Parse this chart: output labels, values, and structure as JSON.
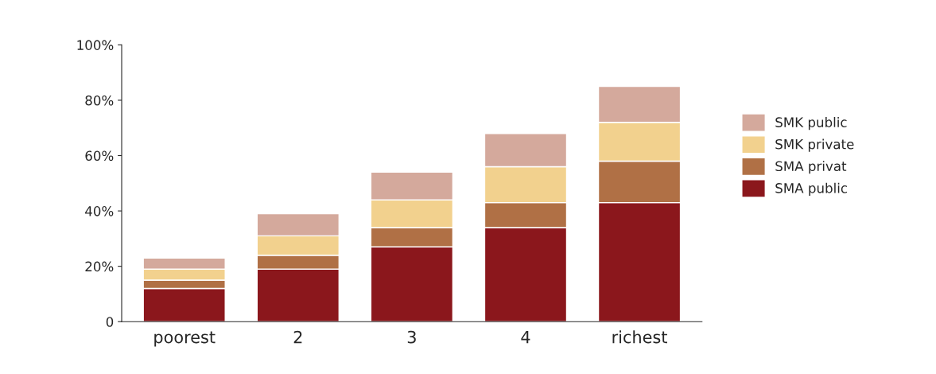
{
  "chart_data": {
    "type": "bar",
    "stacked": true,
    "categories": [
      "poorest",
      "2",
      "3",
      "4",
      "richest"
    ],
    "series": [
      {
        "name": "SMA public",
        "color": "#8b171c",
        "values": [
          12,
          19,
          27,
          34,
          43
        ]
      },
      {
        "name": "SMA privat",
        "color": "#b07045",
        "values": [
          3,
          5,
          7,
          9,
          15
        ]
      },
      {
        "name": "SMK private",
        "color": "#f2d18e",
        "values": [
          4,
          7,
          10,
          13,
          14
        ]
      },
      {
        "name": "SMK public",
        "color": "#d4a99c",
        "values": [
          4,
          8,
          10,
          12,
          13
        ]
      }
    ],
    "ylim": [
      0,
      100
    ],
    "yticks": [
      0,
      {
        "value": 20,
        "label": "20%"
      },
      {
        "value": 40,
        "label": "40%"
      },
      {
        "value": 60,
        "label": "60%"
      },
      {
        "value": 80,
        "label": "80%"
      },
      {
        "value": 100,
        "label": "100%"
      }
    ],
    "grid": false,
    "legend": "right"
  }
}
